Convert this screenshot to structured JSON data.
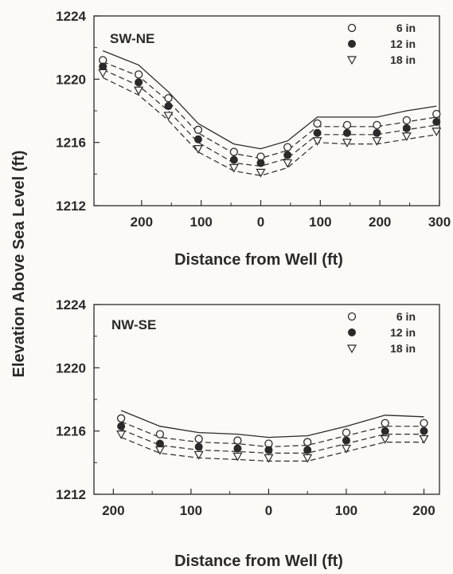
{
  "ylabel": "Elevation Above Sea Level (ft)",
  "chart_data": [
    {
      "type": "line",
      "panel_label": "SW-NE",
      "xlabel": "Distance from Well (ft)",
      "ylabel": "Elevation Above Sea Level (ft)",
      "ylim": [
        1212,
        1224
      ],
      "y_ticks": [
        "1212",
        "1216",
        "1220",
        "1224"
      ],
      "x_ticks": [
        {
          "x": -200,
          "label": "200"
        },
        {
          "x": -100,
          "label": "100"
        },
        {
          "x": 0,
          "label": "0"
        },
        {
          "x": 100,
          "label": "100"
        },
        {
          "x": 200,
          "label": "200"
        },
        {
          "x": 300,
          "label": "300"
        }
      ],
      "xlim": [
        -280,
        300
      ],
      "legend_position": "top-right",
      "series": [
        {
          "name": "6 in",
          "marker": "open-circle",
          "x": [
            -265,
            -205,
            -155,
            -105,
            -45,
            0,
            45,
            95,
            145,
            195,
            245,
            295
          ],
          "y": [
            1221.2,
            1220.3,
            1218.8,
            1216.8,
            1215.4,
            1215.1,
            1215.7,
            1217.2,
            1217.1,
            1217.1,
            1217.4,
            1217.8
          ]
        },
        {
          "name": "12 in",
          "marker": "filled-circle",
          "x": [
            -265,
            -205,
            -155,
            -105,
            -45,
            0,
            45,
            95,
            145,
            195,
            245,
            295
          ],
          "y": [
            1220.8,
            1219.8,
            1218.3,
            1216.2,
            1214.9,
            1214.7,
            1215.2,
            1216.6,
            1216.6,
            1216.6,
            1216.9,
            1217.3
          ]
        },
        {
          "name": "18 in",
          "marker": "open-triangle",
          "x": [
            -265,
            -205,
            -155,
            -105,
            -45,
            0,
            45,
            95,
            145,
            195,
            245,
            295
          ],
          "y": [
            1220.4,
            1219.3,
            1217.7,
            1215.6,
            1214.4,
            1214.1,
            1214.7,
            1216.1,
            1216.0,
            1216.1,
            1216.4,
            1216.7
          ]
        }
      ],
      "fit_lines": {
        "x": [
          -265,
          -205,
          -155,
          -105,
          -45,
          0,
          45,
          95,
          145,
          195,
          245,
          295
        ],
        "solid": [
          1221.8,
          1220.9,
          1219.2,
          1217.2,
          1215.9,
          1215.6,
          1216.1,
          1217.6,
          1217.6,
          1217.6,
          1218.0,
          1218.3
        ],
        "dashed": [
          [
            1221.1,
            1220.2,
            1218.6,
            1216.6,
            1215.3,
            1215.0,
            1215.5,
            1217.0,
            1217.0,
            1217.0,
            1217.3,
            1217.6
          ],
          [
            1220.6,
            1219.6,
            1218.0,
            1216.0,
            1214.7,
            1214.5,
            1215.0,
            1216.5,
            1216.5,
            1216.5,
            1216.8,
            1217.1
          ],
          [
            1220.1,
            1219.0,
            1217.4,
            1215.4,
            1214.2,
            1213.9,
            1214.4,
            1216.0,
            1215.9,
            1215.9,
            1216.2,
            1216.5
          ]
        ]
      }
    },
    {
      "type": "line",
      "panel_label": "NW-SE",
      "xlabel": "Distance from Well (ft)",
      "ylabel": "Elevation Above Sea Level (ft)",
      "ylim": [
        1212,
        1224
      ],
      "y_ticks": [
        "1212",
        "1216",
        "1220",
        "1224"
      ],
      "x_ticks": [
        {
          "x": -200,
          "label": "200"
        },
        {
          "x": -100,
          "label": "100"
        },
        {
          "x": 0,
          "label": "0"
        },
        {
          "x": 100,
          "label": "100"
        },
        {
          "x": 200,
          "label": "200"
        }
      ],
      "xlim": [
        -225,
        220
      ],
      "legend_position": "top-right",
      "series": [
        {
          "name": "6 in",
          "marker": "open-circle",
          "x": [
            -190,
            -140,
            -90,
            -40,
            0,
            50,
            100,
            150,
            200
          ],
          "y": [
            1216.8,
            1215.8,
            1215.5,
            1215.4,
            1215.2,
            1215.3,
            1215.9,
            1216.5,
            1216.5
          ]
        },
        {
          "name": "12 in",
          "marker": "filled-circle",
          "x": [
            -190,
            -140,
            -90,
            -40,
            0,
            50,
            100,
            150,
            200
          ],
          "y": [
            1216.3,
            1215.2,
            1215.0,
            1214.9,
            1214.8,
            1214.8,
            1215.4,
            1216.0,
            1216.0
          ]
        },
        {
          "name": "18 in",
          "marker": "open-triangle",
          "x": [
            -190,
            -140,
            -90,
            -40,
            0,
            50,
            100,
            150,
            200
          ],
          "y": [
            1215.8,
            1214.8,
            1214.5,
            1214.4,
            1214.3,
            1214.3,
            1214.9,
            1215.5,
            1215.5
          ]
        }
      ],
      "fit_lines": {
        "x": [
          -190,
          -140,
          -90,
          -40,
          0,
          50,
          100,
          150,
          200
        ],
        "solid": [
          1217.3,
          1216.3,
          1215.9,
          1215.8,
          1215.6,
          1215.7,
          1216.3,
          1217.0,
          1216.9
        ],
        "dashed": [
          [
            1216.6,
            1215.6,
            1215.3,
            1215.2,
            1215.0,
            1215.1,
            1215.7,
            1216.3,
            1216.3
          ],
          [
            1216.1,
            1215.1,
            1214.8,
            1214.7,
            1214.6,
            1214.6,
            1215.2,
            1215.8,
            1215.8
          ],
          [
            1215.6,
            1214.6,
            1214.3,
            1214.2,
            1214.1,
            1214.1,
            1214.7,
            1215.3,
            1215.3
          ]
        ]
      }
    }
  ]
}
